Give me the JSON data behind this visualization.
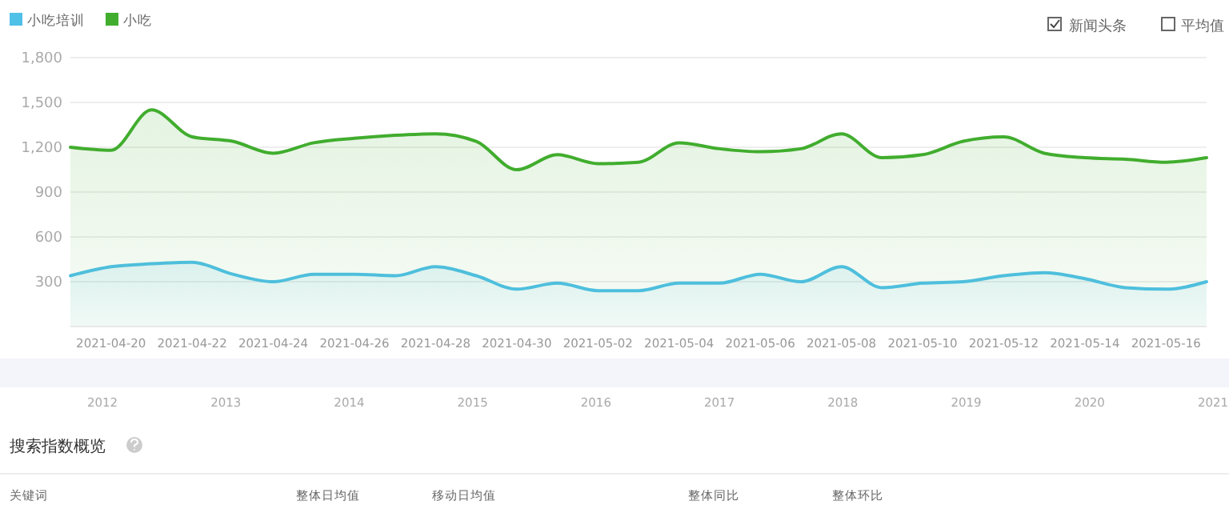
{
  "chart_data": {
    "type": "area",
    "legend": "top left",
    "grid": "y",
    "marker": "none",
    "line_style": "solid",
    "x": [
      "2021-04-19",
      "2021-04-20",
      "2021-04-21",
      "2021-04-22",
      "2021-04-23",
      "2021-04-24",
      "2021-04-25",
      "2021-04-26",
      "2021-04-27",
      "2021-04-28",
      "2021-04-29",
      "2021-04-30",
      "2021-05-01",
      "2021-05-02",
      "2021-05-03",
      "2021-05-04",
      "2021-05-05",
      "2021-05-06",
      "2021-05-07",
      "2021-05-08",
      "2021-05-09",
      "2021-05-10",
      "2021-05-11",
      "2021-05-12",
      "2021-05-13",
      "2021-05-14",
      "2021-05-15",
      "2021-05-16",
      "2021-05-17"
    ],
    "xlim": [
      "2021-04-19",
      "2021-05-17"
    ],
    "xticks": [
      "2021-04-20",
      "2021-04-22",
      "2021-04-24",
      "2021-04-26",
      "2021-04-28",
      "2021-04-30",
      "2021-05-02",
      "2021-05-04",
      "2021-05-06",
      "2021-05-08",
      "2021-05-10",
      "2021-05-12",
      "2021-05-14",
      "2021-05-16"
    ],
    "ylim": [
      0,
      1800
    ],
    "yticks": [
      {
        "value": 300,
        "label": "300"
      },
      {
        "value": 600,
        "label": "600"
      },
      {
        "value": 900,
        "label": "900"
      },
      {
        "value": 1200,
        "label": "1,200"
      },
      {
        "value": 1500,
        "label": "1,500"
      },
      {
        "value": 1800,
        "label": "1,800"
      }
    ],
    "series": [
      {
        "name": "小吃培训",
        "color": "#4fc0e8",
        "values": [
          340,
          400,
          420,
          430,
          350,
          300,
          350,
          350,
          340,
          400,
          340,
          250,
          290,
          240,
          240,
          290,
          290,
          350,
          300,
          400,
          260,
          290,
          300,
          340,
          360,
          320,
          260,
          250,
          300
        ]
      },
      {
        "name": "小吃",
        "color": "#41ad2e",
        "values": [
          1200,
          1180,
          1450,
          1270,
          1240,
          1160,
          1230,
          1260,
          1280,
          1290,
          1240,
          1050,
          1150,
          1090,
          1100,
          1230,
          1190,
          1170,
          1190,
          1290,
          1130,
          1150,
          1240,
          1270,
          1160,
          1130,
          1120,
          1100,
          1130
        ]
      }
    ],
    "annotations": [
      "新闻头条",
      "平均值",
      "搜索指数概览",
      "关键词",
      "整体日均值",
      "移动日均值",
      "整体同比",
      "整体环比",
      "2012",
      "2013",
      "2014",
      "2015",
      "2016",
      "2017",
      "2018",
      "2019",
      "2020",
      "2021"
    ]
  }
}
